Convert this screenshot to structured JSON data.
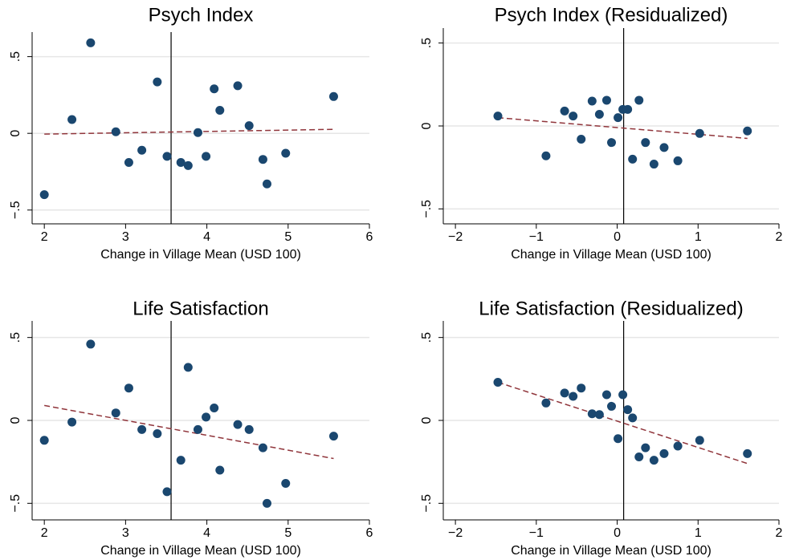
{
  "chart_data": [
    {
      "type": "scatter",
      "title": "Psych Index",
      "xlabel": "Change in Village Mean (USD 100)",
      "color": "#1a476f",
      "grid": true,
      "x": [
        2.0,
        2.34,
        2.57,
        2.88,
        3.04,
        3.2,
        3.39,
        3.51,
        3.68,
        3.77,
        3.89,
        3.99,
        4.09,
        4.16,
        4.38,
        4.52,
        4.69,
        4.74,
        4.97,
        5.56
      ],
      "values": [
        -0.4,
        0.09,
        0.59,
        0.01,
        -0.19,
        -0.11,
        0.335,
        -0.15,
        -0.19,
        -0.21,
        0.005,
        -0.15,
        0.29,
        0.15,
        0.31,
        0.05,
        -0.17,
        -0.33,
        -0.13,
        0.24
      ],
      "fit": {
        "color": "#90353b",
        "x": [
          2.0,
          5.56
        ],
        "values": [
          -0.005,
          0.026
        ]
      },
      "xline": 3.56,
      "xlim": [
        1.85,
        6
      ],
      "xticks": [
        2,
        3,
        4,
        5,
        6
      ],
      "ylim": [
        -0.59,
        0.66
      ],
      "yticks": [
        {
          "value": -0.5,
          "label": "−.5"
        },
        0,
        {
          "value": 0.5,
          "label": ".5"
        }
      ]
    },
    {
      "type": "scatter",
      "title": "Psych Index (Residualized)",
      "xlabel": "Change in Village Mean (USD 100)",
      "color": "#1a476f",
      "grid": true,
      "x": [
        -1.475,
        -0.88,
        -0.65,
        -0.545,
        -0.445,
        -0.31,
        -0.22,
        -0.13,
        -0.07,
        0.01,
        0.07,
        0.13,
        0.19,
        0.27,
        0.35,
        0.455,
        0.58,
        0.75,
        1.02,
        1.61
      ],
      "values": [
        0.06,
        -0.18,
        0.09,
        0.06,
        -0.08,
        0.15,
        0.07,
        0.155,
        -0.1,
        0.05,
        0.1,
        0.1,
        -0.2,
        0.155,
        -0.1,
        -0.23,
        -0.13,
        -0.21,
        -0.045,
        -0.03
      ],
      "fit": {
        "color": "#90353b",
        "x": [
          -1.475,
          1.61
        ],
        "values": [
          0.05,
          -0.075
        ]
      },
      "xline": 0.08,
      "xlim": [
        -2.15,
        2.0
      ],
      "xticks": [
        {
          "value": -2,
          "label": "−2"
        },
        {
          "value": -1,
          "label": "−1"
        },
        0,
        1,
        2
      ],
      "ylim": [
        -0.59,
        0.59
      ],
      "yticks": [
        {
          "value": -0.5,
          "label": "−.5"
        },
        0,
        {
          "value": 0.5,
          "label": ".5"
        }
      ]
    },
    {
      "type": "scatter",
      "title": "Life Satisfaction",
      "xlabel": "Change in Village Mean (USD 100)",
      "color": "#1a476f",
      "grid": true,
      "x": [
        2.0,
        2.34,
        2.57,
        2.88,
        3.04,
        3.2,
        3.39,
        3.51,
        3.68,
        3.77,
        3.89,
        3.99,
        4.09,
        4.16,
        4.38,
        4.52,
        4.69,
        4.74,
        4.97,
        5.56
      ],
      "values": [
        -0.12,
        -0.01,
        0.46,
        0.045,
        0.195,
        -0.055,
        -0.08,
        -0.43,
        -0.24,
        0.32,
        -0.055,
        0.02,
        0.075,
        -0.3,
        -0.025,
        -0.055,
        -0.165,
        -0.5,
        -0.38,
        -0.095
      ],
      "fit": {
        "color": "#90353b",
        "x": [
          2.0,
          5.56
        ],
        "values": [
          0.09,
          -0.23
        ]
      },
      "xline": 3.56,
      "xlim": [
        1.85,
        6
      ],
      "xticks": [
        2,
        3,
        4,
        5,
        6
      ],
      "ylim": [
        -0.6,
        0.6
      ],
      "yticks": [
        {
          "value": -0.5,
          "label": "−.5"
        },
        0,
        {
          "value": 0.5,
          "label": ".5"
        }
      ]
    },
    {
      "type": "scatter",
      "title": "Life Satisfaction (Residualized)",
      "xlabel": "Change in Village Mean (USD 100)",
      "color": "#1a476f",
      "grid": true,
      "x": [
        -1.475,
        -0.88,
        -0.65,
        -0.545,
        -0.445,
        -0.31,
        -0.22,
        -0.13,
        -0.07,
        0.01,
        0.07,
        0.13,
        0.19,
        0.27,
        0.35,
        0.455,
        0.58,
        0.75,
        1.02,
        1.61
      ],
      "values": [
        0.23,
        0.105,
        0.165,
        0.145,
        0.195,
        0.04,
        0.035,
        0.155,
        0.085,
        -0.11,
        0.155,
        0.065,
        0.015,
        -0.22,
        -0.165,
        -0.24,
        -0.2,
        -0.155,
        -0.12,
        -0.2
      ],
      "fit": {
        "color": "#90353b",
        "x": [
          -1.475,
          1.61
        ],
        "values": [
          0.23,
          -0.26
        ]
      },
      "xline": 0.08,
      "xlim": [
        -2.15,
        2.0
      ],
      "xticks": [
        {
          "value": -2,
          "label": "−2"
        },
        {
          "value": -1,
          "label": "−1"
        },
        0,
        1,
        2
      ],
      "ylim": [
        -0.6,
        0.6
      ],
      "yticks": [
        {
          "value": -0.5,
          "label": "−.5"
        },
        0,
        {
          "value": 0.5,
          "label": ".5"
        }
      ]
    }
  ]
}
